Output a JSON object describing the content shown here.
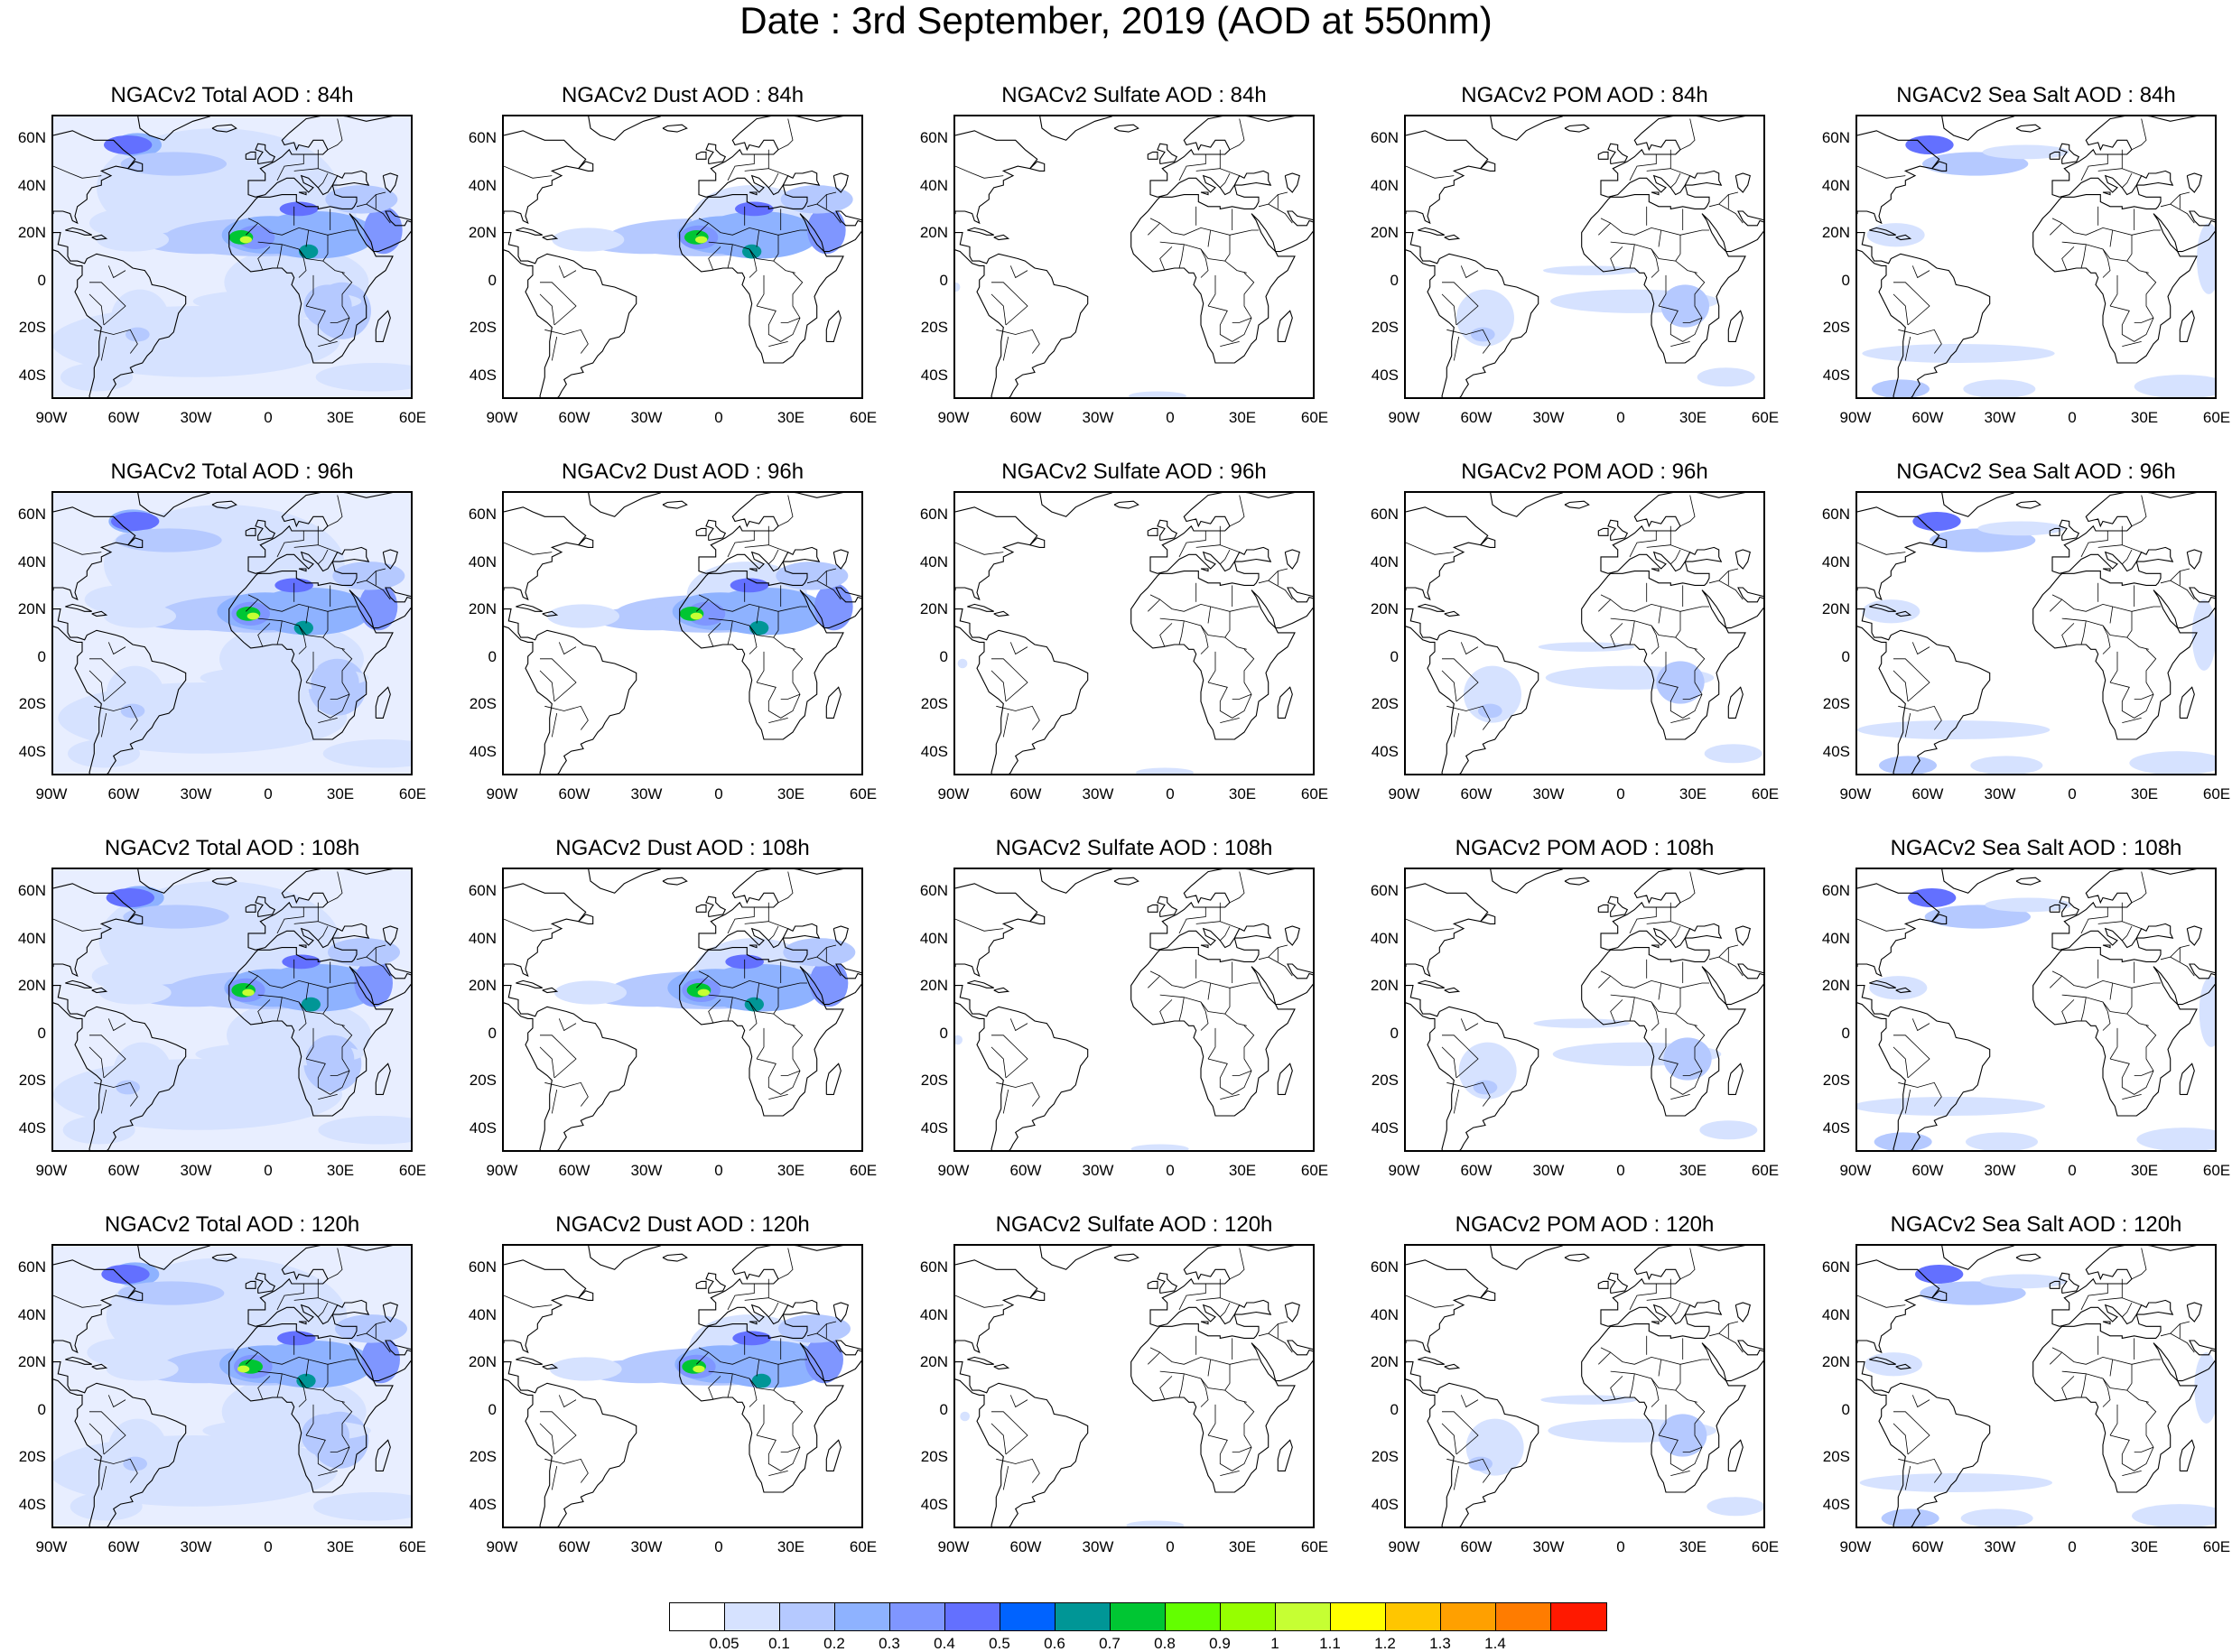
{
  "title": "Date : 3rd September, 2019 (AOD at 550nm)",
  "lat_labels": [
    "60N",
    "40N",
    "20N",
    "0",
    "20S",
    "40S"
  ],
  "lon_labels": [
    "90W",
    "60W",
    "30W",
    "0",
    "30E",
    "60E"
  ],
  "panels": [
    [
      "NGACv2 Total AOD : 84h",
      "NGACv2 Dust AOD : 84h",
      "NGACv2 Sulfate AOD : 84h",
      "NGACv2 POM AOD : 84h",
      "NGACv2 Sea Salt AOD : 84h"
    ],
    [
      "NGACv2 Total AOD : 96h",
      "NGACv2 Dust AOD : 96h",
      "NGACv2 Sulfate AOD : 96h",
      "NGACv2 POM AOD : 96h",
      "NGACv2 Sea Salt AOD : 96h"
    ],
    [
      "NGACv2 Total AOD : 108h",
      "NGACv2 Dust AOD : 108h",
      "NGACv2 Sulfate AOD : 108h",
      "NGACv2 POM AOD : 108h",
      "NGACv2 Sea Salt AOD : 108h"
    ],
    [
      "NGACv2 Total AOD : 120h",
      "NGACv2 Dust AOD : 120h",
      "NGACv2 Sulfate AOD : 120h",
      "NGACv2 POM AOD : 120h",
      "NGACv2 Sea Salt  AOD : 120h"
    ]
  ],
  "colorbar": {
    "colors": [
      "#ffffff",
      "#d6e2ff",
      "#b5c9ff",
      "#8eb2ff",
      "#7f96ff",
      "#6370ff",
      "#0063ff",
      "#009696",
      "#00c633",
      "#63ff00",
      "#96ff00",
      "#c6ff33",
      "#ffff00",
      "#ffc600",
      "#ffa000",
      "#ff7c00",
      "#ff1900"
    ],
    "labels": [
      "0.05",
      "0.1",
      "0.2",
      "0.3",
      "0.4",
      "0.5",
      "0.6",
      "0.7",
      "0.8",
      "0.9",
      "1",
      "1.1",
      "1.2",
      "1.3",
      "1.4"
    ]
  }
}
